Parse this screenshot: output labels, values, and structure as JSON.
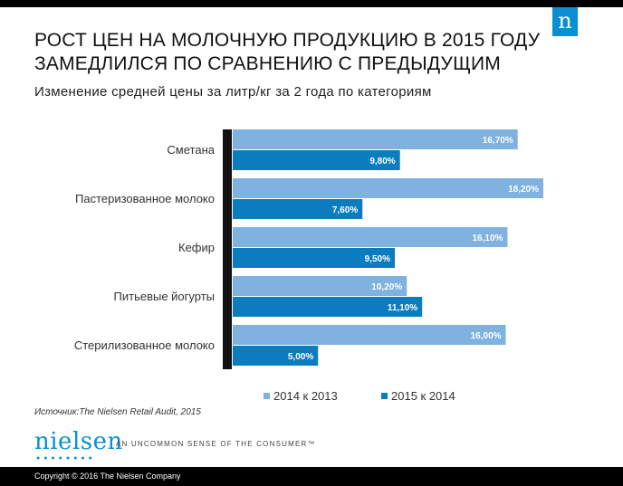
{
  "header": {
    "title": "РОСТ ЦЕН НА МОЛОЧНУЮ ПРОДУКЦИЮ В 2015 ГОДУ ЗАМЕДЛИЛСЯ ПО СРАВНЕНИЮ С ПРЕДЫДУЩИМ",
    "subtitle": "Изменение средней цены за литр/кг за 2 года по категориям",
    "logo_glyph": "n"
  },
  "chart_data": {
    "type": "bar",
    "orientation": "horizontal",
    "categories": [
      "Сметана",
      "Пастеризованное молоко",
      "Кефир",
      "Питьевые йогурты",
      "Стерилизованное молоко"
    ],
    "series": [
      {
        "name": "2014 к 2013",
        "values": [
          16.7,
          18.2,
          16.1,
          10.2,
          16.0
        ],
        "labels": [
          "16,70%",
          "18,20%",
          "16,10%",
          "10,20%",
          "16,00%"
        ],
        "color": "#7fb2df"
      },
      {
        "name": "2015 к 2014",
        "values": [
          9.8,
          7.6,
          9.5,
          11.1,
          5.0
        ],
        "labels": [
          "9,80%",
          "7,60%",
          "9,50%",
          "11,10%",
          "5,00%"
        ],
        "color": "#0b7dbf"
      }
    ],
    "xlim": [
      0,
      19
    ],
    "legend": "bottom"
  },
  "legend": {
    "series1": "2014 к 2013",
    "series2": "2015 к 2014"
  },
  "source": "Источник:The Nielsen Retail Audit, 2015",
  "branding": {
    "logo_text": "nielsen",
    "logo_dots": "●●●●●●●●",
    "tagline": "AN UNCOMMON SENSE OF THE CONSUMER™"
  },
  "footer": {
    "copyright": "Copyright © 2016 The Nielsen Company"
  }
}
